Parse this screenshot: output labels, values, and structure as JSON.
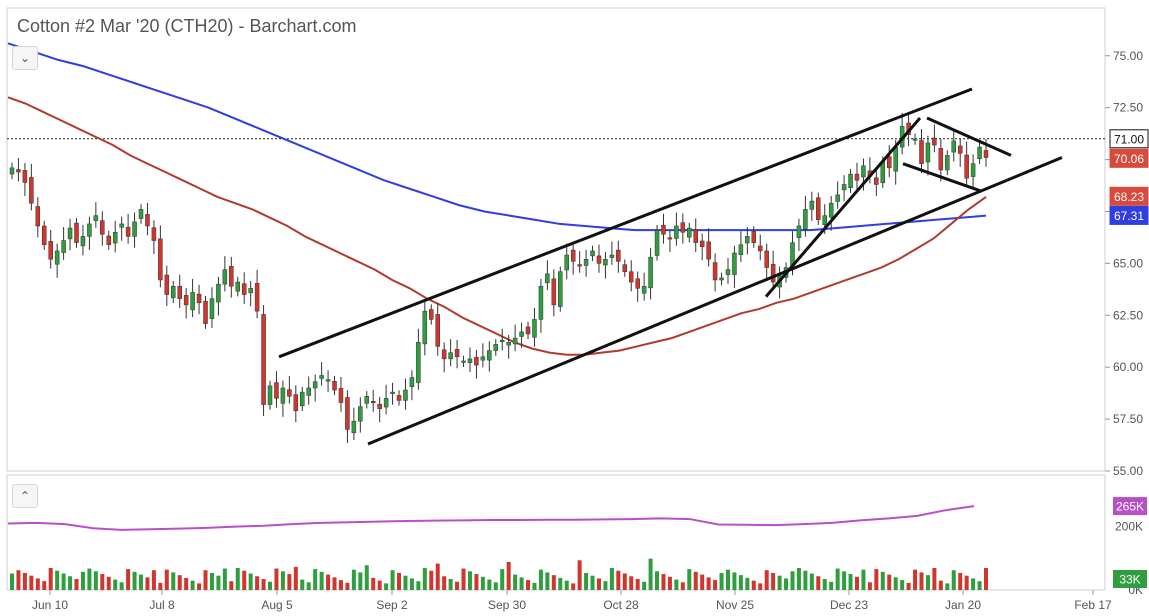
{
  "title": "Cotton #2 Mar '20 (CTH20) - Barchart.com",
  "buttons": {
    "collapse_main": "⌄",
    "collapse_lower": "⌃"
  },
  "colors": {
    "sma_red": "#b03a2e",
    "sma_blue": "#2f3ee0",
    "volume_ma": "#b94fc8",
    "candle_up": "#2e9e3e",
    "candle_down": "#d0362d",
    "label_red": "#d84a3b",
    "label_blue": "#2f3ee0",
    "label_black": "#111111",
    "label_purple": "#b94fc8",
    "label_green": "#2e9e3e"
  },
  "chart_data": {
    "type": "candlestick",
    "price_axis": {
      "ticks": [
        "75.00",
        "72.50",
        "70.00",
        "67.50",
        "65.00",
        "62.50",
        "60.00",
        "57.50",
        "55.00"
      ],
      "ylim": [
        55.0,
        77.3
      ]
    },
    "date_axis": {
      "ticks": [
        "Jun 10",
        "Jul 8",
        "Aug 5",
        "Sep 2",
        "Sep 30",
        "Oct 28",
        "Nov 25",
        "Dec 23",
        "Jan 20",
        "Feb 17"
      ]
    },
    "last_price_labels": [
      {
        "text": "71.00",
        "value": 71.0,
        "color": "label_black"
      },
      {
        "text": "70.06",
        "value": 70.06,
        "color": "label_red"
      },
      {
        "text": "68.23",
        "value": 68.23,
        "color": "label_red"
      },
      {
        "text": "67.31",
        "value": 67.31,
        "color": "label_blue"
      }
    ],
    "reference_line": 71.0,
    "closes": [
      69.6,
      69.4,
      68.9,
      67.9,
      66.8,
      65.9,
      65.2,
      65.6,
      66.1,
      66.7,
      66.0,
      66.3,
      66.9,
      67.3,
      66.4,
      65.9,
      66.5,
      66.9,
      66.3,
      67.0,
      67.6,
      66.8,
      66.1,
      64.2,
      63.5,
      63.9,
      63.3,
      63.0,
      63.6,
      63.1,
      62.1,
      63.3,
      64.0,
      64.7,
      63.9,
      64.1,
      63.5,
      63.8,
      62.7,
      58.2,
      59.1,
      58.5,
      59.0,
      58.6,
      57.9,
      58.8,
      59.0,
      59.3,
      59.6,
      59.4,
      58.9,
      58.3,
      57.0,
      57.4,
      58.1,
      58.6,
      58.3,
      58.0,
      58.5,
      58.8,
      58.4,
      58.9,
      59.5,
      61.2,
      62.7,
      62.3,
      61.0,
      60.4,
      60.7,
      60.5,
      60.3,
      60.4,
      60.1,
      60.5,
      60.8,
      61.1,
      61.3,
      61.2,
      61.4,
      61.7,
      61.6,
      62.3,
      63.9,
      64.5,
      63.0,
      64.6,
      65.4,
      65.1,
      64.9,
      65.2,
      65.6,
      65.0,
      65.2,
      65.4,
      65.1,
      64.6,
      64.1,
      63.8,
      63.9,
      65.3,
      66.6,
      66.4,
      66.2,
      66.8,
      66.5,
      66.7,
      66.0,
      65.8,
      65.2,
      64.2,
      64.3,
      64.7,
      65.5,
      65.9,
      66.3,
      66.0,
      65.6,
      64.8,
      64.1,
      64.4,
      64.8,
      66.0,
      66.8,
      67.6,
      68.0,
      67.1,
      67.3,
      67.9,
      68.3,
      68.8,
      69.3,
      69.0,
      69.7,
      69.2,
      68.8,
      69.9,
      69.6,
      70.6,
      71.6,
      71.2,
      71.0,
      69.8,
      70.8,
      70.7,
      69.5,
      70.2,
      70.9,
      70.3,
      69.1,
      69.8,
      70.6,
      70.1
    ],
    "sma_red_values": [
      73.0,
      72.7,
      72.3,
      71.9,
      71.5,
      71.1,
      70.7,
      70.2,
      69.8,
      69.4,
      69.0,
      68.6,
      68.2,
      67.9,
      67.6,
      67.2,
      66.8,
      66.3,
      65.9,
      65.5,
      65.1,
      64.7,
      64.2,
      63.8,
      63.3,
      62.9,
      62.4,
      62.0,
      61.6,
      61.2,
      60.9,
      60.7,
      60.6,
      60.6,
      60.7,
      60.8,
      61.0,
      61.2,
      61.4,
      61.7,
      62.0,
      62.3,
      62.6,
      62.8,
      63.1,
      63.3,
      63.6,
      63.9,
      64.2,
      64.5,
      64.8,
      65.2,
      65.7,
      66.2,
      66.9,
      67.6,
      68.2
    ],
    "sma_blue_values": [
      75.6,
      75.2,
      74.8,
      74.5,
      74.1,
      73.7,
      73.3,
      72.9,
      72.5,
      72.0,
      71.5,
      71.0,
      70.5,
      70.0,
      69.5,
      69.0,
      68.6,
      68.2,
      67.8,
      67.5,
      67.3,
      67.1,
      66.9,
      66.8,
      66.7,
      66.6,
      66.6,
      66.6,
      66.6,
      66.6,
      66.6,
      66.6,
      66.6,
      66.7,
      66.8,
      66.9,
      67.0,
      67.1,
      67.2,
      67.3
    ],
    "trend_lines": [
      {
        "name": "channel-upper",
        "start": [
          0.0,
          60.5
        ],
        "end": [
          1.0,
          73.4
        ]
      },
      {
        "name": "channel-lower",
        "start": [
          0.0,
          56.3
        ],
        "end": [
          1.0,
          70.1
        ]
      },
      {
        "name": "steep-trend",
        "start": [
          0.0,
          63.4
        ],
        "end": [
          1.0,
          72.0
        ]
      },
      {
        "name": "flag-upper",
        "start": [
          0.0,
          72.0
        ],
        "end": [
          1.0,
          70.2
        ]
      },
      {
        "name": "flag-lower",
        "start": [
          0.0,
          69.8
        ],
        "end": [
          1.0,
          68.5
        ]
      }
    ],
    "volume_axis": {
      "ticks": [
        "200K",
        "0K"
      ]
    },
    "volume_labels": [
      {
        "text": "265K",
        "color": "label_purple"
      },
      {
        "text": "33K",
        "color": "label_green"
      }
    ],
    "volume_ma_values": [
      210,
      212,
      208,
      195,
      190,
      192,
      194,
      196,
      200,
      203,
      208,
      212,
      214,
      216,
      218,
      219,
      220,
      221,
      221,
      222,
      222,
      223,
      224,
      226,
      224,
      207,
      206,
      205,
      208,
      212,
      220,
      226,
      234,
      252,
      265
    ]
  }
}
